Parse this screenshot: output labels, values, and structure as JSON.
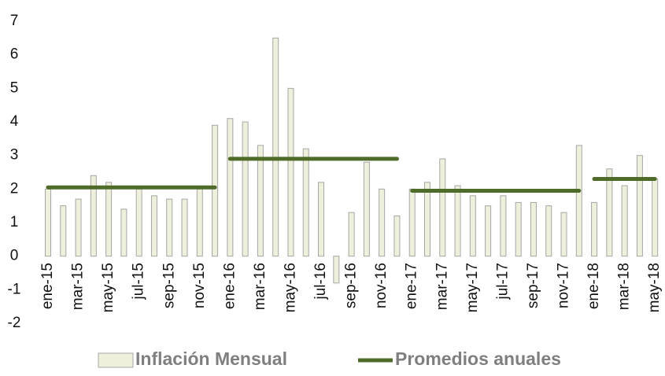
{
  "chart_data": {
    "type": "bar",
    "categories": [
      "ene-15",
      null,
      "mar-15",
      null,
      "may-15",
      null,
      "jul-15",
      null,
      "sep-15",
      null,
      "nov-15",
      null,
      "ene-16",
      null,
      "mar-16",
      null,
      "may-16",
      null,
      "jul-16",
      null,
      "sep-16",
      null,
      "nov-16",
      null,
      "ene-17",
      null,
      "mar-17",
      null,
      "may-17",
      null,
      "jul-17",
      null,
      "sep-17",
      null,
      "nov-17",
      null,
      "ene-18",
      null,
      "mar-18",
      null,
      "may-18"
    ],
    "series": [
      {
        "name": "Inflación Mensual",
        "type": "bar",
        "color": "#eef0dc",
        "edge": "#a6a6a6",
        "values": [
          2.0,
          1.5,
          1.7,
          2.4,
          2.2,
          1.4,
          2.0,
          1.8,
          1.7,
          1.7,
          2.0,
          3.9,
          4.1,
          4.0,
          3.3,
          6.5,
          5.0,
          3.2,
          2.2,
          -0.8,
          1.3,
          2.8,
          2.0,
          1.2,
          2.0,
          2.2,
          2.9,
          2.1,
          1.8,
          1.5,
          1.8,
          1.6,
          1.6,
          1.5,
          1.3,
          3.3,
          1.6,
          2.6,
          2.1,
          3.0,
          2.3
        ]
      },
      {
        "name": "Promedios anuales",
        "type": "line",
        "color": "#4f6b2a",
        "values": [
          2.05,
          2.05,
          2.05,
          2.05,
          2.05,
          2.05,
          2.05,
          2.05,
          2.05,
          2.05,
          2.05,
          2.05,
          2.9,
          2.9,
          2.9,
          2.9,
          2.9,
          2.9,
          2.9,
          2.9,
          2.9,
          2.9,
          2.9,
          2.9,
          1.95,
          1.95,
          1.95,
          1.95,
          1.95,
          1.95,
          1.95,
          1.95,
          1.95,
          1.95,
          1.95,
          1.95,
          2.3,
          2.3,
          2.3,
          2.3,
          2.3
        ]
      }
    ],
    "ylim": [
      -2,
      7
    ],
    "yticks": [
      -2,
      -1,
      0,
      1,
      2,
      3,
      4,
      5,
      6,
      7
    ],
    "grid": false,
    "legend": "bottom"
  }
}
